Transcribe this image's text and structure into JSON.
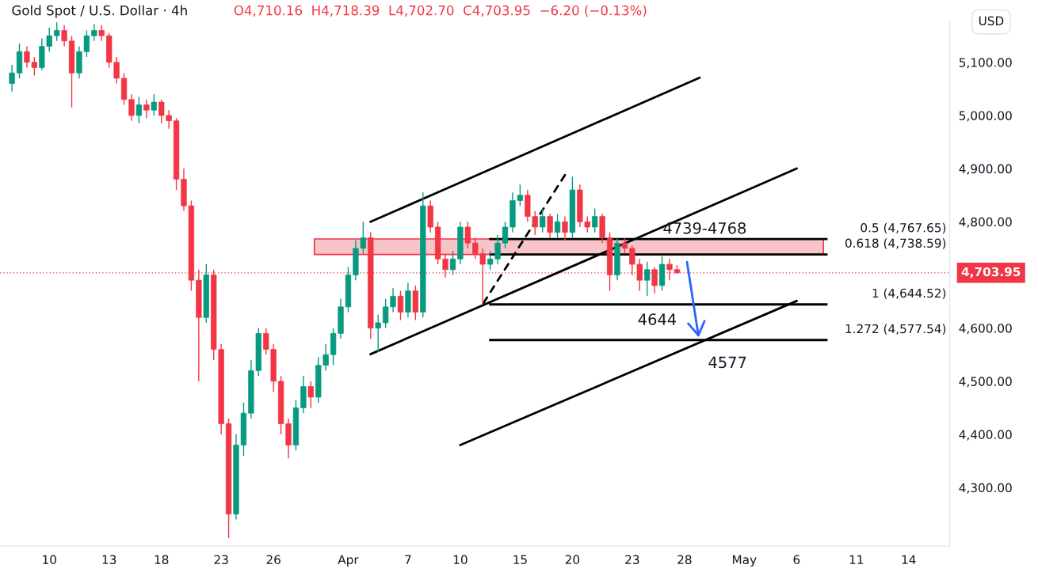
{
  "chart_data": {
    "type": "candlestick",
    "title": "Gold Spot / U.S. Dollar · 4h",
    "subtitle": "O4,710.16  H4,718.39  L4,702.70  C4,703.95  −6.20 (−0.13%)",
    "ylabel": "USD",
    "categories": [
      null,
      null,
      null,
      null,
      null,
      "10",
      null,
      null,
      null,
      null,
      null,
      null,
      null,
      "13",
      null,
      null,
      null,
      null,
      null,
      null,
      "18",
      null,
      null,
      null,
      null,
      null,
      null,
      null,
      "23",
      null,
      null,
      null,
      null,
      null,
      null,
      "26",
      null,
      null,
      null,
      null,
      null,
      null,
      null,
      null,
      null,
      "Apr",
      null,
      null,
      null,
      null,
      null,
      null,
      null,
      "7",
      null,
      null,
      null,
      null,
      null,
      null,
      "10",
      null,
      null,
      null,
      null,
      null,
      null,
      null,
      "15",
      null,
      null,
      null,
      null,
      null,
      null,
      "20",
      null,
      null,
      null,
      null,
      null,
      null,
      null,
      "23",
      null,
      null,
      null,
      null,
      null,
      null,
      "28",
      null,
      null,
      null,
      null,
      null,
      null,
      null,
      "May",
      null,
      null,
      null,
      null,
      null,
      null,
      "6",
      null,
      null,
      null,
      null,
      null,
      null,
      null,
      "11",
      null,
      null,
      null,
      null,
      null,
      null,
      "14",
      null,
      null,
      null,
      null,
      null
    ],
    "ohlc": [
      [
        5060,
        5095,
        5045,
        5080
      ],
      [
        5080,
        5135,
        5070,
        5120
      ],
      [
        5120,
        5130,
        5090,
        5100
      ],
      [
        5100,
        5110,
        5075,
        5090
      ],
      [
        5090,
        5145,
        5085,
        5130
      ],
      [
        5130,
        5165,
        5120,
        5150
      ],
      [
        5150,
        5175,
        5140,
        5160
      ],
      [
        5160,
        5170,
        5130,
        5140
      ],
      [
        5140,
        5150,
        5015,
        5080
      ],
      [
        5080,
        5130,
        5070,
        5120
      ],
      [
        5120,
        5160,
        5110,
        5150
      ],
      [
        5150,
        5172,
        5140,
        5160
      ],
      [
        5160,
        5170,
        5140,
        5150
      ],
      [
        5150,
        5155,
        5090,
        5100
      ],
      [
        5100,
        5110,
        5060,
        5070
      ],
      [
        5070,
        5080,
        5020,
        5030
      ],
      [
        5030,
        5040,
        4990,
        5000
      ],
      [
        5000,
        5035,
        4985,
        5020
      ],
      [
        5020,
        5030,
        4995,
        5010
      ],
      [
        5010,
        5040,
        5000,
        5025
      ],
      [
        5025,
        5030,
        4985,
        5000
      ],
      [
        5000,
        5010,
        4975,
        4990
      ],
      [
        4990,
        4995,
        4860,
        4880
      ],
      [
        4880,
        4900,
        4820,
        4830
      ],
      [
        4830,
        4840,
        4670,
        4690
      ],
      [
        4690,
        4710,
        4500,
        4620
      ],
      [
        4620,
        4720,
        4610,
        4700
      ],
      [
        4700,
        4710,
        4540,
        4560
      ],
      [
        4560,
        4570,
        4400,
        4420
      ],
      [
        4420,
        4430,
        4205,
        4250
      ],
      [
        4250,
        4400,
        4240,
        4380
      ],
      [
        4380,
        4460,
        4360,
        4440
      ],
      [
        4440,
        4540,
        4430,
        4520
      ],
      [
        4520,
        4600,
        4510,
        4590
      ],
      [
        4590,
        4600,
        4550,
        4560
      ],
      [
        4560,
        4570,
        4480,
        4500
      ],
      [
        4500,
        4510,
        4400,
        4420
      ],
      [
        4420,
        4430,
        4355,
        4380
      ],
      [
        4380,
        4465,
        4370,
        4450
      ],
      [
        4450,
        4510,
        4440,
        4490
      ],
      [
        4490,
        4500,
        4450,
        4470
      ],
      [
        4470,
        4545,
        4460,
        4530
      ],
      [
        4530,
        4570,
        4520,
        4550
      ],
      [
        4550,
        4600,
        4530,
        4590
      ],
      [
        4590,
        4655,
        4580,
        4640
      ],
      [
        4640,
        4715,
        4630,
        4700
      ],
      [
        4700,
        4765,
        4690,
        4750
      ],
      [
        4750,
        4800,
        4740,
        4770
      ],
      [
        4770,
        4780,
        4580,
        4600
      ],
      [
        4600,
        4625,
        4555,
        4610
      ],
      [
        4610,
        4655,
        4600,
        4640
      ],
      [
        4640,
        4675,
        4630,
        4660
      ],
      [
        4660,
        4670,
        4615,
        4630
      ],
      [
        4630,
        4685,
        4620,
        4670
      ],
      [
        4670,
        4680,
        4615,
        4630
      ],
      [
        4630,
        4855,
        4620,
        4830
      ],
      [
        4830,
        4840,
        4780,
        4790
      ],
      [
        4790,
        4800,
        4720,
        4730
      ],
      [
        4730,
        4740,
        4695,
        4710
      ],
      [
        4710,
        4745,
        4700,
        4730
      ],
      [
        4730,
        4800,
        4720,
        4790
      ],
      [
        4790,
        4800,
        4750,
        4760
      ],
      [
        4760,
        4770,
        4730,
        4740
      ],
      [
        4740,
        4750,
        4645,
        4720
      ],
      [
        4720,
        4745,
        4710,
        4730
      ],
      [
        4730,
        4775,
        4720,
        4760
      ],
      [
        4760,
        4800,
        4750,
        4790
      ],
      [
        4790,
        4855,
        4780,
        4840
      ],
      [
        4840,
        4870,
        4830,
        4850
      ],
      [
        4850,
        4860,
        4800,
        4810
      ],
      [
        4810,
        4820,
        4775,
        4790
      ],
      [
        4790,
        4825,
        4780,
        4810
      ],
      [
        4810,
        4815,
        4770,
        4780
      ],
      [
        4780,
        4815,
        4770,
        4800
      ],
      [
        4800,
        4810,
        4765,
        4780
      ],
      [
        4780,
        4885,
        4770,
        4860
      ],
      [
        4860,
        4870,
        4790,
        4800
      ],
      [
        4800,
        4810,
        4780,
        4790
      ],
      [
        4790,
        4825,
        4780,
        4810
      ],
      [
        4810,
        4815,
        4760,
        4770
      ],
      [
        4770,
        4780,
        4670,
        4700
      ],
      [
        4700,
        4770,
        4690,
        4760
      ],
      [
        4760,
        4770,
        4740,
        4750
      ],
      [
        4750,
        4755,
        4700,
        4720
      ],
      [
        4720,
        4730,
        4670,
        4690
      ],
      [
        4690,
        4725,
        4660,
        4710
      ],
      [
        4710,
        4715,
        4665,
        4680
      ],
      [
        4680,
        4735,
        4670,
        4720
      ],
      [
        4720,
        4730,
        4690,
        4710
      ],
      [
        4710.16,
        4718.39,
        4702.7,
        4703.95
      ],
      null,
      null,
      null,
      null,
      null,
      null,
      null,
      null,
      null,
      null,
      null,
      null,
      null,
      null,
      null,
      null,
      null,
      null,
      null,
      null,
      null,
      null,
      null,
      null,
      null,
      null,
      null,
      null,
      null,
      null,
      null,
      null,
      null,
      null,
      null,
      null
    ],
    "series": [
      {
        "type": "line",
        "color": "#000000",
        "line_style": "solid",
        "values": [
          null,
          null,
          null,
          null,
          null,
          null,
          null,
          null,
          null,
          null,
          null,
          null,
          null,
          null,
          null,
          null,
          null,
          null,
          null,
          null,
          null,
          null,
          null,
          null,
          null,
          null,
          null,
          null,
          null,
          null,
          null,
          null,
          null,
          null,
          null,
          null,
          null,
          null,
          null,
          null,
          null,
          null,
          null,
          null,
          null,
          null,
          null,
          null,
          4800,
          null,
          null,
          null,
          null,
          null,
          null,
          null,
          null,
          null,
          null,
          null,
          null,
          null,
          null,
          null,
          null,
          null,
          null,
          null,
          null,
          null,
          null,
          null,
          null,
          null,
          null,
          null,
          null,
          null,
          null,
          null,
          null,
          null,
          null,
          null,
          null,
          null,
          null,
          null,
          null,
          null,
          null,
          null,
          5071,
          null,
          null,
          null,
          null,
          null,
          null,
          null,
          null,
          null,
          null,
          null,
          null,
          null,
          null,
          null,
          null,
          null,
          null,
          null,
          null,
          null,
          null,
          null,
          null,
          null,
          null,
          null,
          null,
          null,
          null,
          null,
          null,
          null
        ]
      },
      {
        "type": "line",
        "color": "#000000",
        "line_style": "solid",
        "values": [
          null,
          null,
          null,
          null,
          null,
          null,
          null,
          null,
          null,
          null,
          null,
          null,
          null,
          null,
          null,
          null,
          null,
          null,
          null,
          null,
          null,
          null,
          null,
          null,
          null,
          null,
          null,
          null,
          null,
          null,
          null,
          null,
          null,
          null,
          null,
          null,
          null,
          null,
          null,
          null,
          null,
          null,
          null,
          null,
          null,
          null,
          null,
          null,
          4551,
          null,
          null,
          null,
          null,
          null,
          null,
          null,
          null,
          null,
          null,
          null,
          null,
          null,
          null,
          null,
          null,
          null,
          null,
          null,
          null,
          null,
          null,
          null,
          null,
          null,
          null,
          null,
          null,
          null,
          null,
          null,
          null,
          null,
          null,
          null,
          null,
          null,
          null,
          null,
          null,
          null,
          null,
          null,
          null,
          null,
          null,
          null,
          null,
          null,
          null,
          null,
          null,
          null,
          null,
          null,
          null,
          4900,
          null,
          null,
          null,
          null,
          null,
          null,
          null,
          null,
          null,
          null,
          null,
          null,
          null,
          null,
          null,
          null,
          null,
          null,
          null,
          null
        ]
      },
      {
        "type": "line",
        "color": "#000000",
        "line_style": "solid",
        "values": [
          null,
          null,
          null,
          null,
          null,
          null,
          null,
          null,
          null,
          null,
          null,
          null,
          null,
          null,
          null,
          null,
          null,
          null,
          null,
          null,
          null,
          null,
          null,
          null,
          null,
          null,
          null,
          null,
          null,
          null,
          null,
          null,
          null,
          null,
          null,
          null,
          null,
          null,
          null,
          null,
          null,
          null,
          null,
          null,
          null,
          null,
          null,
          null,
          null,
          null,
          null,
          null,
          null,
          null,
          null,
          null,
          null,
          null,
          null,
          null,
          4380,
          null,
          null,
          null,
          null,
          null,
          null,
          null,
          null,
          null,
          null,
          null,
          null,
          null,
          null,
          null,
          null,
          null,
          null,
          null,
          null,
          null,
          null,
          null,
          null,
          null,
          null,
          null,
          null,
          null,
          null,
          null,
          null,
          null,
          null,
          null,
          null,
          null,
          null,
          null,
          null,
          null,
          null,
          null,
          null,
          4651,
          null,
          null,
          null,
          null,
          null,
          null,
          null,
          null,
          null,
          null,
          null,
          null,
          null,
          null,
          null,
          null,
          null,
          null,
          null,
          null
        ]
      },
      {
        "type": "line",
        "color": "#000000",
        "line_style": "dashed",
        "values": [
          null,
          null,
          null,
          null,
          null,
          null,
          null,
          null,
          null,
          null,
          null,
          null,
          null,
          null,
          null,
          null,
          null,
          null,
          null,
          null,
          null,
          null,
          null,
          null,
          null,
          null,
          null,
          null,
          null,
          null,
          null,
          null,
          null,
          null,
          null,
          null,
          null,
          null,
          null,
          null,
          null,
          null,
          null,
          null,
          null,
          null,
          null,
          null,
          null,
          null,
          null,
          null,
          null,
          null,
          null,
          null,
          null,
          null,
          null,
          null,
          null,
          null,
          null,
          4645,
          null,
          null,
          null,
          null,
          null,
          null,
          null,
          null,
          null,
          null,
          4888,
          null,
          null,
          null,
          null,
          null,
          null,
          null,
          null,
          null,
          null,
          null,
          null,
          null,
          null,
          null,
          null,
          null,
          null,
          null,
          null,
          null,
          null,
          null,
          null,
          null,
          null,
          null,
          null,
          null,
          null,
          null,
          null,
          null,
          null,
          null,
          null,
          null,
          null,
          null,
          null,
          null,
          null,
          null,
          null,
          null,
          null,
          null,
          null,
          null,
          null,
          null
        ]
      },
      {
        "type": "line",
        "name": "0.5 (4,767.65)",
        "color": "#000000",
        "line_style": "solid",
        "values": [
          null,
          null,
          null,
          null,
          null,
          null,
          null,
          null,
          null,
          null,
          null,
          null,
          null,
          null,
          null,
          null,
          null,
          null,
          null,
          null,
          null,
          null,
          null,
          null,
          null,
          null,
          null,
          null,
          null,
          null,
          null,
          null,
          null,
          null,
          null,
          null,
          null,
          null,
          null,
          null,
          null,
          null,
          null,
          null,
          null,
          null,
          null,
          null,
          null,
          null,
          null,
          null,
          null,
          null,
          null,
          null,
          null,
          null,
          null,
          null,
          null,
          null,
          null,
          null,
          4767.65,
          null,
          null,
          null,
          null,
          null,
          null,
          null,
          null,
          null,
          null,
          null,
          null,
          null,
          null,
          null,
          null,
          null,
          null,
          null,
          null,
          null,
          null,
          null,
          null,
          null,
          null,
          null,
          null,
          null,
          null,
          null,
          null,
          null,
          null,
          null,
          null,
          null,
          null,
          null,
          null,
          null,
          null,
          null,
          null,
          4767.65,
          null,
          null,
          null,
          null,
          null,
          null,
          null,
          null,
          null,
          null,
          null,
          null,
          null,
          null,
          null,
          null
        ]
      },
      {
        "type": "line",
        "name": "0.618 (4,738.59)",
        "color": "#000000",
        "line_style": "solid",
        "values": [
          null,
          null,
          null,
          null,
          null,
          null,
          null,
          null,
          null,
          null,
          null,
          null,
          null,
          null,
          null,
          null,
          null,
          null,
          null,
          null,
          null,
          null,
          null,
          null,
          null,
          null,
          null,
          null,
          null,
          null,
          null,
          null,
          null,
          null,
          null,
          null,
          null,
          null,
          null,
          null,
          null,
          null,
          null,
          null,
          null,
          null,
          null,
          null,
          null,
          null,
          null,
          null,
          null,
          null,
          null,
          null,
          null,
          null,
          null,
          null,
          null,
          null,
          null,
          null,
          4738.59,
          null,
          null,
          null,
          null,
          null,
          null,
          null,
          null,
          null,
          null,
          null,
          null,
          null,
          null,
          null,
          null,
          null,
          null,
          null,
          null,
          null,
          null,
          null,
          null,
          null,
          null,
          null,
          null,
          null,
          null,
          null,
          null,
          null,
          null,
          null,
          null,
          null,
          null,
          null,
          null,
          null,
          null,
          null,
          null,
          4738.59,
          null,
          null,
          null,
          null,
          null,
          null,
          null,
          null,
          null,
          null,
          null,
          null,
          null,
          null,
          null,
          null
        ]
      },
      {
        "type": "line",
        "name": "1 (4,644.52)",
        "color": "#000000",
        "line_style": "solid",
        "values": [
          null,
          null,
          null,
          null,
          null,
          null,
          null,
          null,
          null,
          null,
          null,
          null,
          null,
          null,
          null,
          null,
          null,
          null,
          null,
          null,
          null,
          null,
          null,
          null,
          null,
          null,
          null,
          null,
          null,
          null,
          null,
          null,
          null,
          null,
          null,
          null,
          null,
          null,
          null,
          null,
          null,
          null,
          null,
          null,
          null,
          null,
          null,
          null,
          null,
          null,
          null,
          null,
          null,
          null,
          null,
          null,
          null,
          null,
          null,
          null,
          null,
          null,
          null,
          null,
          4644.52,
          null,
          null,
          null,
          null,
          null,
          null,
          null,
          null,
          null,
          null,
          null,
          null,
          null,
          null,
          null,
          null,
          null,
          null,
          null,
          null,
          null,
          null,
          null,
          null,
          null,
          null,
          null,
          null,
          null,
          null,
          null,
          null,
          null,
          null,
          null,
          null,
          null,
          null,
          null,
          null,
          null,
          null,
          null,
          null,
          4644.52,
          null,
          null,
          null,
          null,
          null,
          null,
          null,
          null,
          null,
          null,
          null,
          null,
          null,
          null,
          null,
          null
        ]
      },
      {
        "type": "line",
        "name": "1.272 (4,577.54)",
        "color": "#000000",
        "line_style": "solid",
        "values": [
          null,
          null,
          null,
          null,
          null,
          null,
          null,
          null,
          null,
          null,
          null,
          null,
          null,
          null,
          null,
          null,
          null,
          null,
          null,
          null,
          null,
          null,
          null,
          null,
          null,
          null,
          null,
          null,
          null,
          null,
          null,
          null,
          null,
          null,
          null,
          null,
          null,
          null,
          null,
          null,
          null,
          null,
          null,
          null,
          null,
          null,
          null,
          null,
          null,
          null,
          null,
          null,
          null,
          null,
          null,
          null,
          null,
          null,
          null,
          null,
          null,
          null,
          null,
          null,
          4577.54,
          null,
          null,
          null,
          null,
          null,
          null,
          null,
          null,
          null,
          null,
          null,
          null,
          null,
          null,
          null,
          null,
          null,
          null,
          null,
          null,
          null,
          null,
          null,
          null,
          null,
          null,
          null,
          null,
          null,
          null,
          null,
          null,
          null,
          null,
          null,
          null,
          null,
          null,
          null,
          null,
          null,
          null,
          null,
          null,
          4577.54,
          null,
          null,
          null,
          null,
          null,
          null,
          null,
          null,
          null,
          null,
          null,
          null,
          null,
          null,
          null,
          null
        ]
      }
    ],
    "bands": [
      {
        "axis": "y",
        "from": 4738.59,
        "to": 4767.65,
        "label": "4739-4768",
        "color": "#f7c5c9"
      }
    ],
    "ref_lines": [
      {
        "axis": "y",
        "value": 4703.95,
        "label": "4,703.95",
        "color": "#f23645",
        "line_style": "dotted"
      }
    ],
    "annotations": [
      "4644",
      "4577"
    ],
    "ylim": [
      4190,
      5176
    ],
    "yticks": [
      {
        "value": 4300,
        "label": "4,300.00"
      },
      {
        "value": 4400,
        "label": "4,400.00"
      },
      {
        "value": 4500,
        "label": "4,500.00"
      },
      {
        "value": 4600,
        "label": "4,600.00"
      },
      {
        "value": 4800,
        "label": "4,800.00"
      },
      {
        "value": 4900,
        "label": "4,900.00"
      },
      {
        "value": 5000,
        "label": "5,000.00"
      },
      {
        "value": 5100,
        "label": "5,100.00"
      }
    ],
    "grid": false,
    "legend": false
  }
}
